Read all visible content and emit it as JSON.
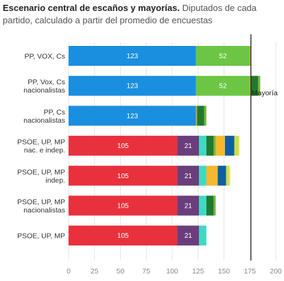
{
  "header": {
    "title": "Escenario central de escaños y mayorías.",
    "subtitle": "Diputados de cada partido, calculado a partir del promedio de encuestas"
  },
  "chart_data": {
    "type": "bar",
    "orientation": "horizontal",
    "stacked": true,
    "xlim": [
      0,
      200
    ],
    "xticks": [
      "0",
      "25",
      "50",
      "75",
      "100",
      "125",
      "150",
      "175",
      "200"
    ],
    "reference_line": {
      "value": 176,
      "label": "Mayoría"
    },
    "grid": true,
    "rows": [
      {
        "label": [
          "PP, VOX, Cs"
        ],
        "segments": [
          {
            "value": 123,
            "color": "#1a8fe0",
            "label": "123"
          },
          {
            "value": 52,
            "color": "#6cc644",
            "label": "52"
          },
          {
            "value": 1,
            "color": "#f39c12",
            "label": ""
          }
        ]
      },
      {
        "label": [
          "PP, Vox, Cs",
          "nacionalistas"
        ],
        "segments": [
          {
            "value": 123,
            "color": "#1a8fe0",
            "label": "123"
          },
          {
            "value": 52,
            "color": "#6cc644",
            "label": "52"
          },
          {
            "value": 1,
            "color": "#f39c12",
            "label": ""
          },
          {
            "value": 7,
            "color": "#1f7a2e",
            "label": ""
          },
          {
            "value": 2,
            "color": "#7bb33b",
            "label": ""
          }
        ]
      },
      {
        "label": [
          "PP, Cs",
          "nacionalistas"
        ],
        "segments": [
          {
            "value": 123,
            "color": "#1a8fe0",
            "label": "123"
          },
          {
            "value": 1,
            "color": "#f39c12",
            "label": ""
          },
          {
            "value": 7,
            "color": "#1f7a2e",
            "label": ""
          },
          {
            "value": 2,
            "color": "#7bb33b",
            "label": ""
          }
        ]
      },
      {
        "label": [
          "PSOE, UP, MP",
          "nac. e indep."
        ],
        "segments": [
          {
            "value": 105,
            "color": "#e8313d",
            "label": "105"
          },
          {
            "value": 21,
            "color": "#6a3e7c",
            "label": "21"
          },
          {
            "value": 7,
            "color": "#3fd9c4",
            "label": ""
          },
          {
            "value": 7,
            "color": "#1f7a2e",
            "label": ""
          },
          {
            "value": 2,
            "color": "#7bb33b",
            "label": ""
          },
          {
            "value": 9,
            "color": "#f5b82e",
            "label": ""
          },
          {
            "value": 9,
            "color": "#0d5fa3",
            "label": ""
          },
          {
            "value": 4,
            "color": "#c9e04a",
            "label": ""
          },
          {
            "value": 1,
            "color": "#e0e86b",
            "label": ""
          }
        ]
      },
      {
        "label": [
          "PSOE, UP, MP",
          "indep."
        ],
        "segments": [
          {
            "value": 105,
            "color": "#e8313d",
            "label": "105"
          },
          {
            "value": 21,
            "color": "#6a3e7c",
            "label": "21"
          },
          {
            "value": 7,
            "color": "#3fd9c4",
            "label": ""
          },
          {
            "value": 11,
            "color": "#f5b82e",
            "label": ""
          },
          {
            "value": 8,
            "color": "#0d5fa3",
            "label": ""
          },
          {
            "value": 3,
            "color": "#c9e04a",
            "label": ""
          },
          {
            "value": 1,
            "color": "#e0e86b",
            "label": ""
          }
        ]
      },
      {
        "label": [
          "PSOE, UP, MP",
          "nacionalistas"
        ],
        "segments": [
          {
            "value": 105,
            "color": "#e8313d",
            "label": "105"
          },
          {
            "value": 21,
            "color": "#6a3e7c",
            "label": "21"
          },
          {
            "value": 7,
            "color": "#3fd9c4",
            "label": ""
          },
          {
            "value": 7,
            "color": "#1f7a2e",
            "label": ""
          },
          {
            "value": 2,
            "color": "#7bb33b",
            "label": ""
          }
        ]
      },
      {
        "label": [
          "PSOE, UP, MP"
        ],
        "segments": [
          {
            "value": 105,
            "color": "#e8313d",
            "label": "105"
          },
          {
            "value": 21,
            "color": "#6a3e7c",
            "label": "21"
          },
          {
            "value": 7,
            "color": "#3fd9c4",
            "label": ""
          }
        ]
      }
    ]
  }
}
